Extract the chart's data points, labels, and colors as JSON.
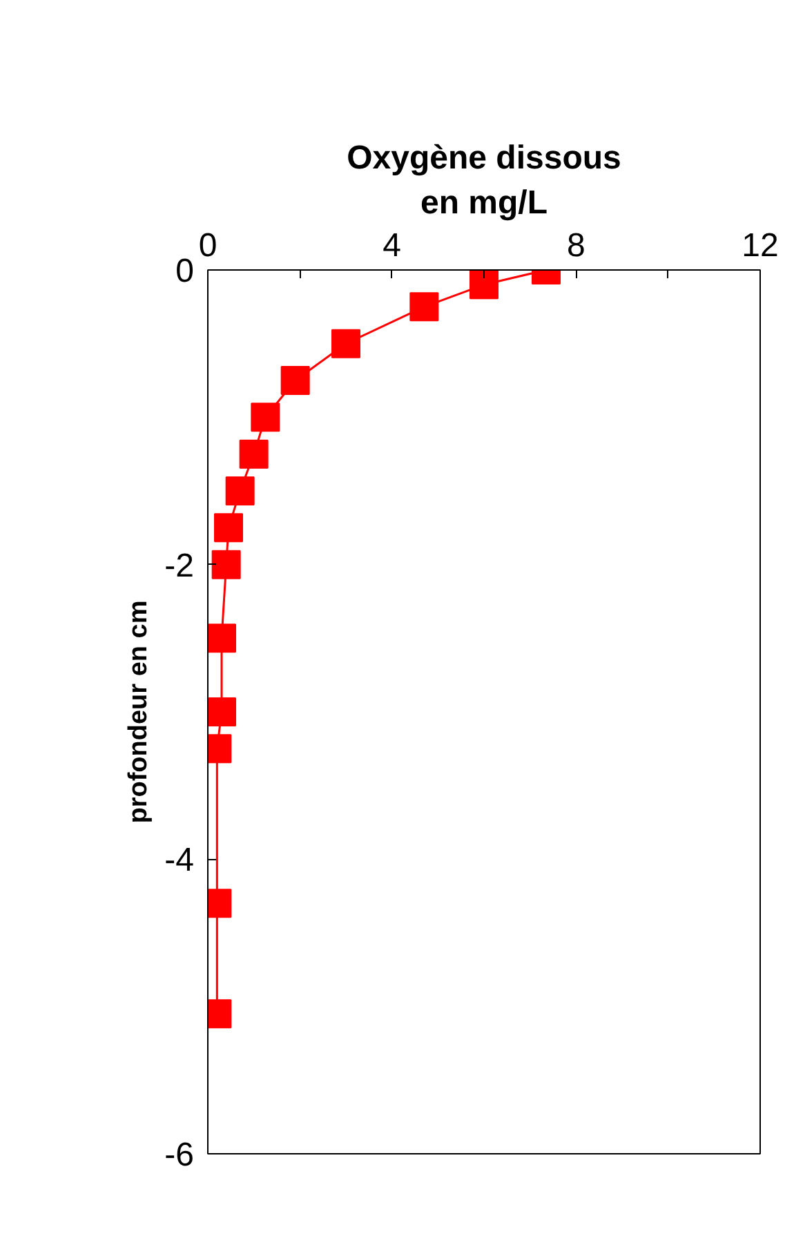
{
  "chart_data": {
    "type": "line",
    "xlabel": "Oxygène dissous\nen mg/L",
    "ylabel": "profondeur en cm",
    "x": [
      7.35,
      6.0,
      4.7,
      3.0,
      1.9,
      1.25,
      1.0,
      0.7,
      0.45,
      0.4,
      0.3,
      0.3,
      0.2,
      0.2,
      0.2
    ],
    "series": [
      {
        "color": "#ff0000",
        "values": [
          0,
          -0.1,
          -0.25,
          -0.5,
          -0.75,
          -1.0,
          -1.25,
          -1.5,
          -1.75,
          -2.0,
          -2.5,
          -3.0,
          -3.25,
          -4.3,
          -5.05
        ]
      }
    ],
    "xlim": [
      0,
      12
    ],
    "xticks": [
      0,
      {
        "value": 2,
        "label": null
      },
      4,
      {
        "value": 6,
        "label": null
      },
      8,
      {
        "value": 10,
        "label": null
      },
      12
    ],
    "ylim": [
      -6,
      0
    ],
    "yticks": [
      -6,
      -4,
      -2,
      0
    ],
    "marker": "square",
    "line_style": "solid",
    "grid": false
  }
}
